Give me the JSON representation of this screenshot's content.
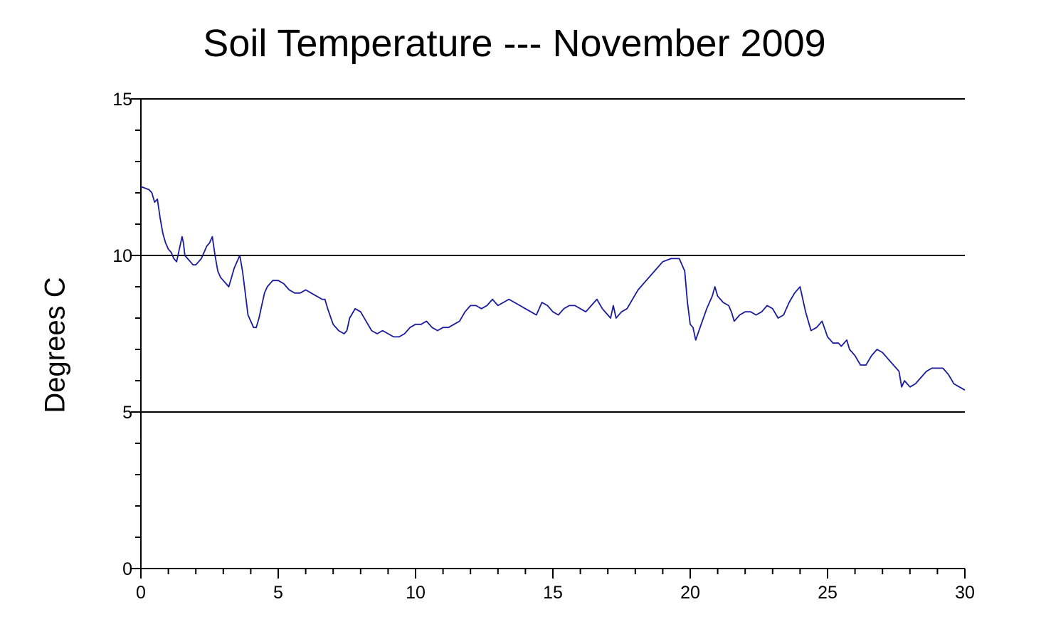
{
  "chart_data": {
    "type": "line",
    "title": "Soil Temperature --- November 2009",
    "xlabel": "",
    "ylabel": "Degrees C",
    "xlim": [
      0,
      30
    ],
    "ylim": [
      0,
      15
    ],
    "x_ticks": [
      0,
      5,
      10,
      15,
      20,
      25,
      30
    ],
    "y_ticks": [
      0,
      5,
      10,
      15
    ],
    "grid": "horizontal at 5, 10, 15",
    "legend": "none",
    "line_color": "#1a1a9c",
    "series": [
      {
        "x": [
          0,
          0.3,
          0.4,
          0.5,
          0.6,
          0.7,
          0.8,
          0.9,
          1.0,
          1.1,
          1.2,
          1.3,
          1.4,
          1.5,
          1.55,
          1.6,
          1.7,
          1.8,
          1.9,
          2.0,
          2.1,
          2.2,
          2.3,
          2.4,
          2.5,
          2.6,
          2.65,
          2.7,
          2.8,
          2.9,
          3.0,
          3.1,
          3.2,
          3.3,
          3.4,
          3.5,
          3.6,
          3.7,
          3.8,
          3.9,
          4.0,
          4.1,
          4.2,
          4.3,
          4.4,
          4.5,
          4.6,
          4.8,
          5.0,
          5.2,
          5.4,
          5.6,
          5.8,
          6.0,
          6.2,
          6.4,
          6.6,
          6.7,
          6.8,
          7.0,
          7.2,
          7.4,
          7.5,
          7.6,
          7.8,
          8.0,
          8.2,
          8.4,
          8.6,
          8.8,
          9.0,
          9.2,
          9.4,
          9.6,
          9.8,
          10.0,
          10.2,
          10.4,
          10.6,
          10.8,
          11.0,
          11.2,
          11.4,
          11.6,
          11.8,
          12.0,
          12.2,
          12.4,
          12.6,
          12.8,
          13.0,
          13.2,
          13.4,
          13.6,
          13.8,
          14.0,
          14.2,
          14.4,
          14.6,
          14.8,
          15.0,
          15.2,
          15.4,
          15.6,
          15.8,
          16.0,
          16.2,
          16.4,
          16.6,
          16.8,
          17.0,
          17.1,
          17.2,
          17.3,
          17.5,
          17.7,
          17.9,
          18.1,
          18.4,
          18.7,
          19.0,
          19.3,
          19.6,
          19.8,
          19.9,
          20.0,
          20.1,
          20.2,
          20.4,
          20.6,
          20.8,
          20.9,
          21.0,
          21.2,
          21.4,
          21.5,
          21.6,
          21.8,
          22.0,
          22.2,
          22.4,
          22.6,
          22.8,
          23.0,
          23.2,
          23.4,
          23.6,
          23.8,
          24.0,
          24.2,
          24.4,
          24.6,
          24.8,
          25.0,
          25.2,
          25.4,
          25.5,
          25.6,
          25.7,
          25.8,
          26.0,
          26.2,
          26.4,
          26.6,
          26.8,
          27.0,
          27.2,
          27.4,
          27.6,
          27.7,
          27.8,
          28.0,
          28.2,
          28.4,
          28.6,
          28.8,
          29.0,
          29.2,
          29.4,
          29.6,
          29.8,
          30.0
        ],
        "y": [
          12.2,
          12.1,
          12.0,
          11.7,
          11.8,
          11.2,
          10.7,
          10.4,
          10.2,
          10.1,
          9.9,
          9.8,
          10.2,
          10.6,
          10.4,
          10.0,
          9.9,
          9.8,
          9.7,
          9.7,
          9.8,
          9.9,
          10.1,
          10.3,
          10.4,
          10.6,
          10.3,
          10.0,
          9.5,
          9.3,
          9.2,
          9.1,
          9.0,
          9.3,
          9.6,
          9.8,
          10.0,
          9.5,
          8.8,
          8.1,
          7.9,
          7.7,
          7.7,
          8.0,
          8.4,
          8.8,
          9.0,
          9.2,
          9.2,
          9.1,
          8.9,
          8.8,
          8.8,
          8.9,
          8.8,
          8.7,
          8.6,
          8.6,
          8.3,
          7.8,
          7.6,
          7.5,
          7.6,
          8.0,
          8.3,
          8.2,
          7.9,
          7.6,
          7.5,
          7.6,
          7.5,
          7.4,
          7.4,
          7.5,
          7.7,
          7.8,
          7.8,
          7.9,
          7.7,
          7.6,
          7.7,
          7.7,
          7.8,
          7.9,
          8.2,
          8.4,
          8.4,
          8.3,
          8.4,
          8.6,
          8.4,
          8.5,
          8.6,
          8.5,
          8.4,
          8.3,
          8.2,
          8.1,
          8.5,
          8.4,
          8.2,
          8.1,
          8.3,
          8.4,
          8.4,
          8.3,
          8.2,
          8.4,
          8.6,
          8.3,
          8.1,
          8.0,
          8.4,
          8.0,
          8.2,
          8.3,
          8.6,
          8.9,
          9.2,
          9.5,
          9.8,
          9.9,
          9.9,
          9.5,
          8.5,
          7.8,
          7.7,
          7.3,
          7.8,
          8.3,
          8.7,
          9.0,
          8.7,
          8.5,
          8.4,
          8.2,
          7.9,
          8.1,
          8.2,
          8.2,
          8.1,
          8.2,
          8.4,
          8.3,
          8.0,
          8.1,
          8.5,
          8.8,
          9.0,
          8.2,
          7.6,
          7.7,
          7.9,
          7.4,
          7.2,
          7.2,
          7.1,
          7.2,
          7.3,
          7.0,
          6.8,
          6.5,
          6.5,
          6.8,
          7.0,
          6.9,
          6.7,
          6.5,
          6.3,
          5.8,
          6.0,
          5.8,
          5.9,
          6.1,
          6.3,
          6.4,
          6.4,
          6.4,
          6.2,
          5.9,
          5.8,
          5.7
        ]
      }
    ]
  }
}
